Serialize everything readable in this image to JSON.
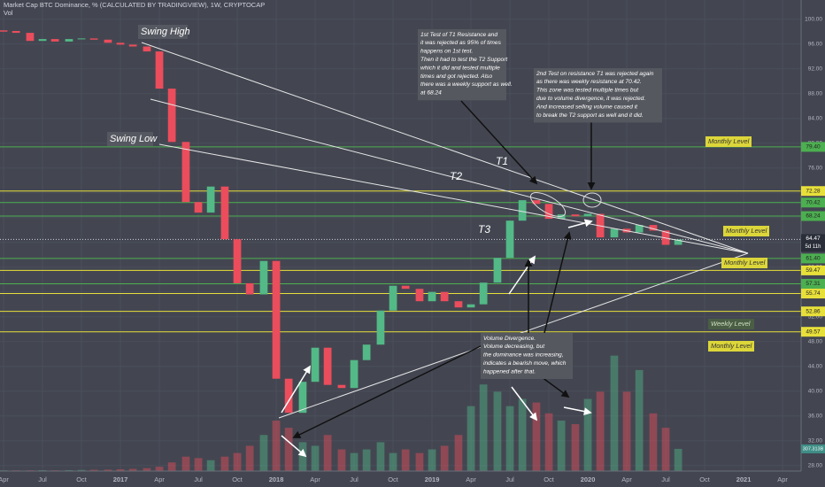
{
  "chart_data": {
    "type": "candlestick",
    "title": "Market Cap BTC Dominance, % (CALCULATED BY TRADINGVIEW), 1W, CRYPTOCAP",
    "subtitle": "Vol",
    "x": [
      2016.25,
      2016.33,
      2016.42,
      2016.5,
      2016.58,
      2016.67,
      2016.75,
      2016.83,
      2016.92,
      2017.0,
      2017.08,
      2017.17,
      2017.25,
      2017.33,
      2017.42,
      2017.5,
      2017.58,
      2017.67,
      2017.75,
      2017.83,
      2017.92,
      2018.0,
      2018.08,
      2018.17,
      2018.25,
      2018.33,
      2018.42,
      2018.5,
      2018.58,
      2018.67,
      2018.75,
      2018.83,
      2018.92,
      2019.0,
      2019.08,
      2019.17,
      2019.25,
      2019.33,
      2019.42,
      2019.5,
      2019.58,
      2019.67,
      2019.75,
      2019.83,
      2019.92,
      2020.0,
      2020.08,
      2020.17,
      2020.25,
      2020.33,
      2020.42,
      2020.5,
      2020.58
    ],
    "closes": [
      98.1,
      97.8,
      96.5,
      96.8,
      96.4,
      96.8,
      96.9,
      96.7,
      96.2,
      95.9,
      95.6,
      94.8,
      88.8,
      80.2,
      70.5,
      68.8,
      73.0,
      64.5,
      57.4,
      55.6,
      61.0,
      42.0,
      36.5,
      41.5,
      47.0,
      41.0,
      40.5,
      45.0,
      47.5,
      53.0,
      57.0,
      56.5,
      54.5,
      56.0,
      54.5,
      53.5,
      54.0,
      57.5,
      61.5,
      67.5,
      70.8,
      70.2,
      67.8,
      68.5,
      68.2,
      68.6,
      64.8,
      66.2,
      65.6,
      66.8,
      65.9,
      63.6,
      64.47
    ],
    "up_color": "#53b987",
    "down_color": "#eb4d5c",
    "xlim": [
      2016.227,
      2021.369
    ],
    "ylim": [
      27.1,
      103.1
    ],
    "grid": true,
    "xticks": [
      {
        "value": 2016.25,
        "label": "Apr"
      },
      {
        "value": 2016.5,
        "label": "Jul"
      },
      {
        "value": 2016.75,
        "label": "Oct"
      },
      2017,
      {
        "value": 2017.25,
        "label": "Apr"
      },
      {
        "value": 2017.5,
        "label": "Jul"
      },
      {
        "value": 2017.75,
        "label": "Oct"
      },
      2018,
      {
        "value": 2018.25,
        "label": "Apr"
      },
      {
        "value": 2018.5,
        "label": "Jul"
      },
      {
        "value": 2018.75,
        "label": "Oct"
      },
      2019,
      {
        "value": 2019.25,
        "label": "Apr"
      },
      {
        "value": 2019.5,
        "label": "Jul"
      },
      {
        "value": 2019.75,
        "label": "Oct"
      },
      2020,
      {
        "value": 2020.25,
        "label": "Apr"
      },
      {
        "value": 2020.5,
        "label": "Jul"
      },
      {
        "value": 2020.75,
        "label": "Oct"
      },
      2021,
      {
        "value": 2021.25,
        "label": "Apr"
      }
    ],
    "yticks": [
      {
        "value": 28,
        "label": "28.00"
      },
      {
        "value": 32,
        "label": "32.00"
      },
      {
        "value": 36,
        "label": "36.00"
      },
      {
        "value": 40,
        "label": "40.00"
      },
      {
        "value": 44,
        "label": "44.00"
      },
      {
        "value": 48,
        "label": "48.00"
      },
      {
        "value": 52,
        "label": "52.00"
      },
      {
        "value": 56,
        "label": "56.00"
      },
      {
        "value": 60,
        "label": "60.00"
      },
      {
        "value": 64,
        "label": "64.00"
      },
      {
        "value": 68,
        "label": "68.00"
      },
      {
        "value": 72,
        "label": "72.00"
      },
      {
        "value": 76,
        "label": "76.00"
      },
      {
        "value": 80,
        "label": "80.00"
      },
      {
        "value": 84,
        "label": "84.00"
      },
      {
        "value": 88,
        "label": "88.00"
      },
      {
        "value": 92,
        "label": "92.00"
      },
      {
        "value": 96,
        "label": "96.00"
      },
      {
        "value": 100,
        "label": "100.00"
      }
    ],
    "volume": {
      "values": [
        10,
        10,
        10,
        12,
        10,
        12,
        15,
        18,
        20,
        25,
        30,
        40,
        60,
        120,
        200,
        180,
        150,
        200,
        250,
        350,
        500,
        700,
        600,
        400,
        350,
        500,
        300,
        250,
        300,
        400,
        250,
        300,
        250,
        300,
        350,
        500,
        900,
        1200,
        1100,
        900,
        1000,
        950,
        800,
        700,
        650,
        1000,
        1100,
        1600,
        1100,
        1400,
        800,
        600,
        307.313
      ],
      "vlim": [
        0,
        2700
      ],
      "last_label": "307.313B"
    },
    "levels": [
      {
        "value": 79.4,
        "label": "79.40",
        "color": "#4caf50"
      },
      {
        "value": 72.28,
        "color": "#e8e03a"
      },
      {
        "value": 70.42,
        "color": "#4caf50"
      },
      {
        "value": 68.24,
        "color": "#4caf50"
      },
      {
        "value": 61.4,
        "label": "61.40",
        "color": "#4caf50"
      },
      {
        "value": 59.47,
        "color": "#e8e03a"
      },
      {
        "value": 57.31,
        "color": "#4caf50"
      },
      {
        "value": 55.74,
        "color": "#e8e03a"
      },
      {
        "value": 52.86,
        "color": "#e8e03a"
      },
      {
        "value": 49.57,
        "color": "#e8e03a"
      }
    ],
    "countdown": "5d 11h",
    "labels": [
      "Swing High",
      "Swing Low",
      "T1",
      "T2",
      "T3"
    ],
    "level_notes": [
      "Monthly Level",
      "Monthly Level",
      "Monthly Level",
      "Weekly Level",
      "Monthly Level"
    ],
    "notes": [
      [
        "1st Test of T1 Resistance and",
        "it was rejected as 95% of times",
        "happens on 1st test.",
        "Then it had to test the T2 Support",
        "which it did and tested multiple",
        "times and got rejected. Also",
        "there was a weekly support as well.",
        "at 68.24"
      ],
      [
        "2nd Test on resistance T1 was rejected again",
        "as there was weekly resistance at 70.42.",
        "This zone was tested multiple times but",
        "due to volume divergence, it was rejected.",
        "And increased selling volume caused it",
        "to break the T2 support as well and it did."
      ],
      [
        "Volume Divergence.",
        "Volume decreasing, but",
        "the dominance was increasing,",
        "indicates a bearish move, which",
        "happened after that."
      ]
    ]
  }
}
